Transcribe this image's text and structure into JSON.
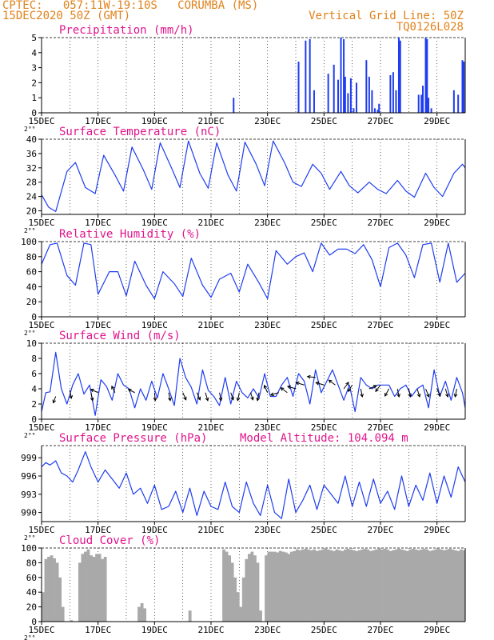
{
  "header": {
    "station_line": "CPTEC:   057:11W-19:10S   CORUMBA (MS)",
    "date_line": "15DEC2020 50Z (GMT)",
    "grid_line_label": "Vertical Grid Line: 50Z",
    "code": "TQ0126L028",
    "model_altitude": "Model Altitude: 104.094 m"
  },
  "colors": {
    "header": "#e0821c",
    "title": "#e0148c",
    "line": "#1f3df0",
    "bar": "#1f3df0",
    "cloud": "#a9a9a9",
    "arrow": "#000000"
  },
  "chart_data": [
    {
      "type": "bar",
      "title": "Precipitation (mm/h)",
      "ylim": [
        0,
        5
      ],
      "yticks": [
        0,
        1,
        2,
        3,
        4,
        5
      ],
      "xlim": [
        15,
        30
      ],
      "xticks": [
        "15DEC",
        "17DEC",
        "19DEC",
        "21DEC",
        "23DEC",
        "25DEC",
        "27DEC",
        "29DEC"
      ],
      "tick_marker": "2°°",
      "x": [
        21.8,
        24.1,
        24.35,
        24.5,
        24.65,
        25.15,
        25.35,
        25.5,
        25.6,
        25.7,
        25.75,
        25.85,
        25.95,
        26.05,
        26.15,
        26.5,
        26.6,
        26.7,
        26.8,
        26.9,
        26.95,
        27.35,
        27.45,
        27.55,
        27.65,
        27.7,
        28.35,
        28.45,
        28.5,
        28.6,
        28.65,
        28.7,
        28.8,
        29.6,
        29.75,
        29.9,
        29.95
      ],
      "values": [
        1.0,
        3.4,
        4.8,
        4.9,
        1.5,
        2.6,
        3.2,
        2.2,
        5.0,
        4.9,
        2.4,
        1.3,
        2.3,
        0.3,
        2.0,
        3.5,
        2.4,
        1.5,
        0.3,
        0.2,
        0.6,
        2.5,
        2.7,
        1.5,
        5.0,
        4.8,
        1.2,
        1.2,
        1.8,
        5.0,
        4.9,
        1.0,
        0.3,
        1.5,
        1.2,
        3.5,
        3.4
      ]
    },
    {
      "type": "line",
      "title": "Surface Temperature (nC)",
      "ylim": [
        19,
        40
      ],
      "yticks": [
        20,
        24,
        28,
        32,
        36,
        40
      ],
      "xlim": [
        15,
        30
      ],
      "xticks": [
        "15DEC",
        "17DEC",
        "19DEC",
        "21DEC",
        "23DEC",
        "25DEC",
        "27DEC",
        "29DEC"
      ],
      "tick_marker": "2°°",
      "x": [
        15.0,
        15.25,
        15.5,
        15.9,
        16.2,
        16.55,
        16.9,
        17.2,
        17.6,
        17.9,
        18.2,
        18.6,
        18.9,
        19.2,
        19.6,
        19.9,
        20.2,
        20.6,
        20.9,
        21.2,
        21.6,
        21.9,
        22.2,
        22.6,
        22.9,
        23.2,
        23.6,
        23.9,
        24.2,
        24.6,
        24.9,
        25.2,
        25.6,
        25.9,
        26.2,
        26.6,
        26.9,
        27.2,
        27.6,
        27.9,
        28.2,
        28.6,
        28.9,
        29.2,
        29.6,
        29.9,
        30.0
      ],
      "values": [
        24.5,
        21.0,
        19.8,
        31.0,
        33.5,
        26.5,
        24.8,
        35.5,
        30.0,
        25.5,
        37.8,
        31.5,
        26.0,
        39.0,
        32.0,
        26.5,
        39.5,
        30.5,
        26.3,
        39.0,
        30.0,
        25.5,
        39.2,
        33.0,
        27.0,
        39.5,
        33.5,
        28.0,
        26.8,
        33.0,
        30.5,
        26.0,
        31.0,
        27.0,
        25.0,
        28.0,
        26.0,
        24.8,
        28.5,
        25.5,
        23.8,
        30.5,
        26.5,
        24.0,
        30.5,
        33.0,
        32.0
      ]
    },
    {
      "type": "line",
      "title": "Relative Humidity (%)",
      "ylim": [
        0,
        100
      ],
      "yticks": [
        0,
        20,
        40,
        60,
        80,
        100
      ],
      "xlim": [
        15,
        30
      ],
      "xticks": [
        "15DEC",
        "17DEC",
        "19DEC",
        "21DEC",
        "23DEC",
        "25DEC",
        "27DEC",
        "29DEC"
      ],
      "tick_marker": "2°°",
      "x": [
        15.0,
        15.3,
        15.55,
        15.9,
        16.2,
        16.5,
        16.75,
        17.0,
        17.4,
        17.7,
        18.0,
        18.3,
        18.7,
        19.0,
        19.3,
        19.7,
        20.0,
        20.3,
        20.7,
        21.0,
        21.3,
        21.7,
        22.0,
        22.3,
        22.7,
        23.0,
        23.3,
        23.7,
        24.0,
        24.3,
        24.6,
        24.9,
        25.2,
        25.5,
        25.8,
        26.1,
        26.4,
        26.7,
        27.0,
        27.3,
        27.6,
        27.9,
        28.2,
        28.5,
        28.8,
        29.1,
        29.4,
        29.7,
        30.0
      ],
      "values": [
        70.0,
        96.0,
        98.0,
        55.0,
        42.0,
        98.0,
        96.0,
        30.0,
        60.0,
        60.0,
        28.0,
        74.0,
        42.0,
        24.0,
        60.0,
        44.0,
        27.0,
        78.0,
        42.0,
        26.0,
        50.0,
        58.0,
        33.0,
        70.0,
        45.0,
        24.0,
        88.0,
        70.0,
        80.0,
        85.0,
        60.0,
        98.0,
        82.0,
        90.0,
        90.0,
        84.0,
        96.0,
        76.0,
        40.0,
        92.0,
        98.0,
        82.0,
        52.0,
        96.0,
        98.0,
        46.0,
        98.0,
        46.0,
        58.0
      ]
    },
    {
      "type": "line",
      "title": "Surface Wind (m/s)",
      "ylim": [
        0,
        10
      ],
      "yticks": [
        0,
        2,
        4,
        6,
        8,
        10
      ],
      "xlim": [
        15,
        30
      ],
      "xticks": [
        "15DEC",
        "17DEC",
        "19DEC",
        "21DEC",
        "23DEC",
        "25DEC",
        "27DEC",
        "29DEC"
      ],
      "tick_marker": "2°°",
      "x": [
        15.0,
        15.15,
        15.3,
        15.5,
        15.7,
        15.9,
        16.1,
        16.3,
        16.5,
        16.7,
        16.9,
        17.1,
        17.3,
        17.5,
        17.7,
        17.9,
        18.1,
        18.3,
        18.5,
        18.7,
        18.9,
        19.1,
        19.3,
        19.5,
        19.7,
        19.9,
        20.1,
        20.3,
        20.5,
        20.7,
        20.9,
        21.1,
        21.3,
        21.5,
        21.7,
        21.9,
        22.1,
        22.3,
        22.5,
        22.7,
        22.9,
        23.1,
        23.3,
        23.5,
        23.7,
        23.9,
        24.1,
        24.3,
        24.5,
        24.7,
        24.9,
        25.1,
        25.3,
        25.5,
        25.7,
        25.9,
        26.1,
        26.3,
        26.5,
        26.7,
        26.9,
        27.1,
        27.3,
        27.5,
        27.7,
        27.9,
        28.1,
        28.3,
        28.5,
        28.7,
        28.9,
        29.1,
        29.3,
        29.5,
        29.7,
        29.9,
        30.0
      ],
      "values": [
        1.0,
        3.5,
        3.6,
        8.8,
        4.0,
        2.0,
        4.5,
        6.0,
        3.3,
        4.5,
        0.5,
        5.2,
        4.3,
        2.5,
        6.0,
        4.5,
        4.0,
        1.5,
        4.0,
        2.5,
        5.0,
        2.8,
        6.0,
        4.0,
        1.8,
        8.0,
        5.5,
        4.2,
        2.0,
        6.5,
        3.8,
        3.0,
        1.8,
        5.5,
        2.0,
        5.0,
        3.5,
        2.8,
        4.0,
        2.8,
        6.0,
        3.0,
        3.0,
        4.5,
        5.5,
        3.0,
        6.0,
        5.0,
        2.0,
        6.5,
        3.5,
        5.0,
        6.5,
        4.5,
        2.5,
        4.5,
        1.0,
        5.5,
        4.5,
        4.0,
        4.5,
        4.5,
        4.5,
        3.0,
        4.0,
        4.5,
        3.0,
        4.0,
        4.5,
        1.5,
        6.5,
        3.0,
        5.0,
        2.5,
        5.5,
        3.5,
        1.5
      ],
      "arrows": {
        "x": [
          15.5,
          16.0,
          16.75,
          17.0,
          17.6,
          18.3,
          19.0,
          19.5,
          20.0,
          20.5,
          20.8,
          21.3,
          21.7,
          22.0,
          22.4,
          22.7,
          23.0,
          23.4,
          23.7,
          24.0,
          24.3,
          24.7,
          25.0,
          25.4,
          25.7,
          26.0,
          26.3,
          26.6,
          27.0,
          27.3,
          27.6,
          28.0,
          28.3,
          28.6,
          29.0,
          29.3,
          29.7
        ],
        "y": [
          3.0,
          3.8,
          3.5,
          3.5,
          3.5,
          3.5,
          3.5,
          3.5,
          3.5,
          3.5,
          3.5,
          3.5,
          3.5,
          3.5,
          3.5,
          3.5,
          3.5,
          3.5,
          3.5,
          4.0,
          4.5,
          5.5,
          4.5,
          4.5,
          4.0,
          4.5,
          4.0,
          4.0,
          4.5,
          4.0,
          4.0,
          4.0,
          4.0,
          4.0,
          4.0,
          4.0,
          4.0
        ],
        "u": [
          -0.3,
          0.2,
          0.2,
          -0.9,
          -0.4,
          -0.8,
          0.1,
          0.2,
          0.4,
          0.4,
          0.3,
          0.2,
          0.3,
          -0.2,
          0.3,
          -0.2,
          -0.4,
          -1.0,
          -0.8,
          -1.0,
          -1.0,
          -1.0,
          -1.0,
          -0.8,
          0.6,
          -0.5,
          0.2,
          0.9,
          -0.6,
          -0.5,
          0.2,
          0.2,
          0.3,
          0.4,
          0.4,
          0.3,
          -0.2
        ],
        "v": [
          -0.8,
          -1.0,
          -1.0,
          0.4,
          0.8,
          0.4,
          -1.0,
          -1.0,
          -0.9,
          -0.9,
          -1.0,
          -1.0,
          -0.9,
          -1.0,
          -0.9,
          -1.0,
          0.9,
          -0.3,
          0.6,
          0.3,
          0.3,
          0.1,
          0.3,
          0.6,
          0.8,
          -0.8,
          -1.0,
          0.4,
          -0.8,
          -0.9,
          -1.0,
          -1.0,
          -1.0,
          -1.0,
          -0.9,
          -1.0,
          -1.0
        ]
      }
    },
    {
      "type": "line",
      "title": "Surface Pressure (hPa)",
      "ylim": [
        988.5,
        1001
      ],
      "yticks": [
        990,
        993,
        996,
        999
      ],
      "xlim": [
        15,
        30
      ],
      "xticks": [
        "15DEC",
        "17DEC",
        "19DEC",
        "21DEC",
        "23DEC",
        "25DEC",
        "27DEC",
        "29DEC"
      ],
      "tick_marker": "2°°",
      "x": [
        15.0,
        15.15,
        15.3,
        15.5,
        15.7,
        15.9,
        16.1,
        16.3,
        16.55,
        16.75,
        17.0,
        17.25,
        17.5,
        17.75,
        18.0,
        18.25,
        18.5,
        18.75,
        19.0,
        19.25,
        19.5,
        19.75,
        20.0,
        20.25,
        20.5,
        20.75,
        21.0,
        21.25,
        21.5,
        21.75,
        22.0,
        22.25,
        22.5,
        22.75,
        23.0,
        23.25,
        23.5,
        23.75,
        24.0,
        24.25,
        24.5,
        24.75,
        25.0,
        25.25,
        25.5,
        25.75,
        26.0,
        26.25,
        26.5,
        26.75,
        27.0,
        27.25,
        27.5,
        27.75,
        28.0,
        28.25,
        28.5,
        28.75,
        29.0,
        29.25,
        29.5,
        29.75,
        30.0
      ],
      "values": [
        997.5,
        998.2,
        997.8,
        998.5,
        996.5,
        996.0,
        995.0,
        997.0,
        1000.0,
        997.5,
        995.0,
        997.0,
        995.5,
        994.0,
        996.5,
        993.0,
        994.0,
        991.5,
        994.5,
        990.5,
        991.0,
        993.5,
        990.0,
        994.0,
        989.5,
        993.5,
        991.0,
        990.5,
        995.0,
        991.0,
        990.0,
        995.0,
        991.5,
        989.5,
        994.5,
        990.0,
        989.0,
        995.5,
        990.0,
        992.0,
        994.5,
        990.5,
        994.5,
        993.0,
        991.5,
        996.0,
        991.0,
        995.0,
        991.0,
        995.5,
        991.5,
        993.5,
        990.5,
        996.0,
        991.0,
        994.5,
        992.0,
        996.5,
        991.5,
        996.0,
        992.5,
        997.5,
        995.0
      ]
    },
    {
      "type": "area",
      "title": "Cloud Cover (%)",
      "ylim": [
        0,
        100
      ],
      "yticks": [
        0,
        20,
        40,
        60,
        80,
        100
      ],
      "xlim": [
        15,
        30
      ],
      "xticks": [
        "15DEC",
        "17DEC",
        "19DEC",
        "21DEC",
        "23DEC",
        "25DEC",
        "27DEC",
        "29DEC"
      ],
      "tick_marker": "2°°",
      "x": [
        15.0,
        15.1,
        15.2,
        15.3,
        15.4,
        15.5,
        15.6,
        15.7,
        15.8,
        15.9,
        16.0,
        16.1,
        16.2,
        16.3,
        16.4,
        16.5,
        16.6,
        16.7,
        16.8,
        16.9,
        17.0,
        17.1,
        17.2,
        17.3,
        17.4,
        17.5,
        17.6,
        17.7,
        17.8,
        17.9,
        18.0,
        18.1,
        18.2,
        18.3,
        18.4,
        18.5,
        18.6,
        18.7,
        18.8,
        18.9,
        19.0,
        19.1,
        19.2,
        19.3,
        19.4,
        19.5,
        19.6,
        19.7,
        19.8,
        19.9,
        20.0,
        20.1,
        20.2,
        20.3,
        20.4,
        20.5,
        20.6,
        20.7,
        20.8,
        20.9,
        21.0,
        21.1,
        21.2,
        21.3,
        21.4,
        21.5,
        21.6,
        21.7,
        21.8,
        21.9,
        22.0,
        22.1,
        22.2,
        22.3,
        22.4,
        22.5,
        22.6,
        22.7,
        22.8,
        22.9,
        23.0,
        23.1,
        23.2,
        23.3,
        23.4,
        23.5,
        23.6,
        23.7,
        23.8,
        23.9,
        24.0,
        24.1,
        24.2,
        24.3,
        24.4,
        24.5,
        24.6,
        24.7,
        24.8,
        24.9,
        25.0,
        25.1,
        25.2,
        25.3,
        25.4,
        25.5,
        25.6,
        25.7,
        25.8,
        25.9,
        26.0,
        26.1,
        26.2,
        26.3,
        26.4,
        26.5,
        26.6,
        26.7,
        26.8,
        26.9,
        27.0,
        27.1,
        27.2,
        27.3,
        27.4,
        27.5,
        27.6,
        27.7,
        27.8,
        27.9,
        28.0,
        28.1,
        28.2,
        28.3,
        28.4,
        28.5,
        28.6,
        28.7,
        28.8,
        28.9,
        29.0,
        29.1,
        29.2,
        29.3,
        29.4,
        29.5,
        29.6,
        29.7,
        29.8,
        29.9
      ],
      "values": [
        40.0,
        85.0,
        88.0,
        90.0,
        86.0,
        80.0,
        60.0,
        20.0,
        0.0,
        0.0,
        2.0,
        0.0,
        0.0,
        80.0,
        92.0,
        95.0,
        98.0,
        90.0,
        88.0,
        92.0,
        92.0,
        85.0,
        88.0,
        0.0,
        0.0,
        0.0,
        0.0,
        0.0,
        0.0,
        0.0,
        0.0,
        0.0,
        0.0,
        0.0,
        20.0,
        25.0,
        18.0,
        0.0,
        0.0,
        0.0,
        0.0,
        0.0,
        0.0,
        0.0,
        0.0,
        0.0,
        0.0,
        0.0,
        0.0,
        0.0,
        0.0,
        0.0,
        15.0,
        0.0,
        0.0,
        0.0,
        0.0,
        0.0,
        0.0,
        0.0,
        0.0,
        0.0,
        0.0,
        0.0,
        98.0,
        95.0,
        90.0,
        80.0,
        60.0,
        40.0,
        20.0,
        60.0,
        85.0,
        92.0,
        95.0,
        90.0,
        80.0,
        15.0,
        0.0,
        90.0,
        95.0,
        95.0,
        95.0,
        94.0,
        96.0,
        95.0,
        94.0,
        92.0,
        95.0,
        96.0,
        98.0,
        97.0,
        98.0,
        99.0,
        98.0,
        97.0,
        98.0,
        96.0,
        97.0,
        98.0,
        99.0,
        98.0,
        97.0,
        96.0,
        98.0,
        97.0,
        96.0,
        98.0,
        99.0,
        98.0,
        97.0,
        96.0,
        97.0,
        98.0,
        99.0,
        98.0,
        96.0,
        97.0,
        98.0,
        99.0,
        98.0,
        99.0,
        98.0,
        96.0,
        97.0,
        98.0,
        99.0,
        98.0,
        97.0,
        96.0,
        98.0,
        99.0,
        98.0,
        97.0,
        98.0,
        99.0,
        98.0,
        96.0,
        97.0,
        98.0,
        99.0,
        98.0,
        97.0,
        98.0,
        99.0,
        98.0,
        97.0,
        96.0,
        98.0,
        97.0
      ]
    }
  ]
}
